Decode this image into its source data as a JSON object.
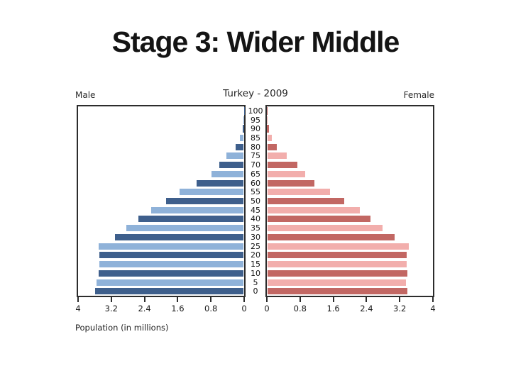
{
  "slide": {
    "title": "Stage 3: Wider Middle"
  },
  "chart_data": {
    "type": "bar",
    "subtype": "population-pyramid",
    "title": "Turkey - 2009",
    "left_label": "Male",
    "right_label": "Female",
    "xlabel": "Population (in millions)",
    "xlim": [
      0,
      4
    ],
    "x_tick_labels_left": [
      "4",
      "3.2",
      "2.4",
      "1.6",
      "0.8",
      "0"
    ],
    "x_tick_labels_right": [
      "0",
      "0.8",
      "1.6",
      "2.4",
      "3.2",
      "4"
    ],
    "age_tick_labels": [
      "100",
      "95",
      "90",
      "85",
      "80",
      "75",
      "70",
      "65",
      "60",
      "55",
      "50",
      "45",
      "40",
      "35",
      "30",
      "25",
      "20",
      "15",
      "10",
      "5",
      "0"
    ],
    "categories_age_groups": [
      "0",
      "5",
      "10",
      "15",
      "20",
      "25",
      "30",
      "35",
      "40",
      "45",
      "50",
      "55",
      "60",
      "65",
      "70",
      "75",
      "80",
      "85",
      "90",
      "95",
      "100"
    ],
    "grid": false,
    "legend": false,
    "colors": {
      "male_dark": "#3E5F8C",
      "male_light": "#8FB2D9",
      "female_dark": "#C26763",
      "female_light": "#F2AEAC",
      "axis": "#2c2c2c"
    },
    "series": [
      {
        "name": "Male",
        "side": "left",
        "values_millions": [
          3.6,
          3.57,
          3.53,
          3.5,
          3.5,
          3.52,
          3.13,
          2.86,
          2.57,
          2.26,
          1.9,
          1.57,
          1.16,
          0.8,
          0.62,
          0.45,
          0.22,
          0.12,
          0.03,
          0.015,
          0.008
        ]
      },
      {
        "name": "Female",
        "side": "right",
        "values_millions": [
          3.41,
          3.36,
          3.41,
          3.38,
          3.39,
          3.43,
          3.1,
          2.8,
          2.52,
          2.26,
          1.88,
          1.54,
          1.17,
          0.94,
          0.75,
          0.5,
          0.25,
          0.13,
          0.05,
          0.02,
          0.01
        ]
      }
    ]
  }
}
